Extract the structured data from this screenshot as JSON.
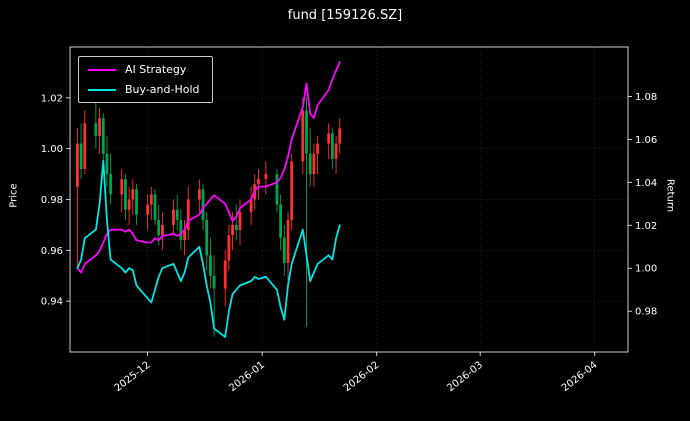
{
  "chart_data": {
    "type": "candlestick+line",
    "title": "fund [159126.SZ]",
    "background": "#000000",
    "text_color": "#ffffff",
    "grid": true,
    "grid_color": "#2b2b2b",
    "frame_color": "#ffffff",
    "left_axis": {
      "label": "Price",
      "ticks": [
        0.94,
        0.96,
        0.98,
        1.0,
        1.02
      ],
      "range": [
        0.92,
        1.04
      ]
    },
    "right_axis": {
      "label": "Return",
      "ticks": [
        0.98,
        1.0,
        1.02,
        1.04,
        1.06,
        1.08
      ],
      "range": [
        0.961,
        1.103
      ]
    },
    "x_axis": {
      "range": [
        "2025-11-10",
        "2026-04-10"
      ],
      "ticks": [
        {
          "date": "2025-12-01",
          "label": "2025-12"
        },
        {
          "date": "2026-01-01",
          "label": "2026-01"
        },
        {
          "date": "2026-02-01",
          "label": "2026-02"
        },
        {
          "date": "2026-03-01",
          "label": "2026-03"
        },
        {
          "date": "2026-04-01",
          "label": "2026-04"
        }
      ]
    },
    "legend": {
      "position": "upper left",
      "entries": [
        {
          "name": "AI Strategy",
          "color": "#FF00FF",
          "axis": "right"
        },
        {
          "name": "Buy-and-Hold",
          "color": "#00E5E5",
          "axis": "right"
        }
      ]
    },
    "candlestick": {
      "axis": "left",
      "up_color": "#FF3232",
      "down_color": "#00A54F",
      "dates": [
        "2025-11-12",
        "2025-11-13",
        "2025-11-14",
        "2025-11-17",
        "2025-11-18",
        "2025-11-19",
        "2025-11-20",
        "2025-11-21",
        "2025-11-24",
        "2025-11-25",
        "2025-11-26",
        "2025-11-27",
        "2025-11-28",
        "2025-12-01",
        "2025-12-02",
        "2025-12-03",
        "2025-12-04",
        "2025-12-05",
        "2025-12-08",
        "2025-12-09",
        "2025-12-10",
        "2025-12-11",
        "2025-12-12",
        "2025-12-15",
        "2025-12-16",
        "2025-12-17",
        "2025-12-18",
        "2025-12-19",
        "2025-12-22",
        "2025-12-23",
        "2025-12-24",
        "2025-12-25",
        "2025-12-26",
        "2025-12-29",
        "2025-12-30",
        "2025-12-31",
        "2026-01-02",
        "2026-01-05",
        "2026-01-06",
        "2026-01-07",
        "2026-01-08",
        "2026-01-09",
        "2026-01-12",
        "2026-01-13",
        "2026-01-14",
        "2026-01-15",
        "2026-01-16",
        "2026-01-19",
        "2026-01-20",
        "2026-01-21",
        "2026-01-22"
      ],
      "open": [
        0.985,
        1.002,
        0.992,
        1.01,
        1.005,
        1.012,
        0.998,
        0.99,
        0.982,
        0.988,
        0.976,
        0.98,
        0.984,
        0.974,
        0.978,
        0.982,
        0.972,
        0.966,
        0.97,
        0.976,
        0.972,
        0.964,
        0.968,
        0.98,
        0.984,
        0.972,
        0.958,
        0.95,
        0.945,
        0.956,
        0.966,
        0.97,
        0.968,
        0.975,
        0.98,
        0.986,
        0.988,
        0.99,
        0.978,
        0.965,
        0.955,
        0.972,
        0.995,
        1.015,
        0.998,
        0.99,
        0.998,
        1.002,
        1.006,
        0.996,
        1.002
      ],
      "high": [
        1.008,
        1.01,
        1.015,
        1.018,
        1.016,
        1.014,
        1.005,
        0.998,
        0.992,
        0.99,
        0.985,
        0.988,
        0.986,
        0.982,
        0.985,
        0.984,
        0.978,
        0.975,
        0.98,
        0.982,
        0.976,
        0.972,
        0.985,
        0.988,
        0.986,
        0.975,
        0.965,
        0.958,
        0.96,
        0.97,
        0.975,
        0.978,
        0.98,
        0.985,
        0.99,
        0.992,
        0.995,
        0.992,
        0.982,
        0.97,
        0.975,
        0.998,
        1.02,
        1.02,
        1.008,
        1.002,
        1.005,
        1.01,
        1.008,
        1.005,
        1.012
      ],
      "low": [
        0.953,
        0.988,
        0.99,
        1.0,
        0.998,
        0.995,
        0.985,
        0.978,
        0.975,
        0.972,
        0.97,
        0.974,
        0.97,
        0.968,
        0.972,
        0.97,
        0.962,
        0.96,
        0.966,
        0.968,
        0.96,
        0.958,
        0.964,
        0.975,
        0.968,
        0.952,
        0.945,
        0.926,
        0.938,
        0.952,
        0.96,
        0.964,
        0.962,
        0.97,
        0.976,
        0.98,
        0.982,
        0.975,
        0.96,
        0.95,
        0.948,
        0.968,
        0.99,
        0.93,
        0.985,
        0.985,
        0.99,
        0.996,
        0.992,
        0.99,
        0.998
      ],
      "close": [
        1.002,
        0.992,
        1.01,
        1.005,
        1.012,
        0.998,
        0.99,
        0.982,
        0.988,
        0.976,
        0.98,
        0.984,
        0.974,
        0.978,
        0.982,
        0.972,
        0.966,
        0.97,
        0.976,
        0.972,
        0.964,
        0.968,
        0.98,
        0.984,
        0.972,
        0.958,
        0.95,
        0.945,
        0.956,
        0.966,
        0.97,
        0.968,
        0.975,
        0.98,
        0.986,
        0.988,
        0.99,
        0.978,
        0.965,
        0.955,
        0.972,
        0.995,
        1.015,
        0.998,
        0.99,
        0.998,
        1.002,
        1.006,
        0.996,
        1.002,
        1.008
      ]
    },
    "series": [
      {
        "name": "AI Strategy",
        "color": "#FF00FF",
        "axis": "right",
        "values": [
          1.0,
          0.998,
          1.002,
          1.006,
          1.008,
          1.012,
          1.016,
          1.018,
          1.018,
          1.017,
          1.018,
          1.016,
          1.013,
          1.012,
          1.012,
          1.014,
          1.013,
          1.015,
          1.016,
          1.015,
          1.016,
          1.018,
          1.022,
          1.025,
          1.028,
          1.03,
          1.032,
          1.034,
          1.03,
          1.026,
          1.022,
          1.024,
          1.028,
          1.032,
          1.036,
          1.038,
          1.038,
          1.04,
          1.042,
          1.046,
          1.052,
          1.06,
          1.075,
          1.086,
          1.072,
          1.07,
          1.076,
          1.083,
          1.088,
          1.092,
          1.096
        ]
      },
      {
        "name": "Buy-and-Hold",
        "color": "#00E5E5",
        "axis": "right",
        "values": [
          1.0,
          1.004,
          1.014,
          1.018,
          1.03,
          1.05,
          1.022,
          1.004,
          1.0,
          0.998,
          1.0,
          0.999,
          0.992,
          0.986,
          0.984,
          0.99,
          0.996,
          1.0,
          1.002,
          0.998,
          0.994,
          0.998,
          1.005,
          1.01,
          1.002,
          0.992,
          0.984,
          0.972,
          0.968,
          0.98,
          0.988,
          0.99,
          0.992,
          0.994,
          0.996,
          0.995,
          0.996,
          0.99,
          0.982,
          0.976,
          0.992,
          1.002,
          1.018,
          1.006,
          0.994,
          0.998,
          1.002,
          1.006,
          1.004,
          1.014,
          1.02
        ]
      }
    ]
  }
}
